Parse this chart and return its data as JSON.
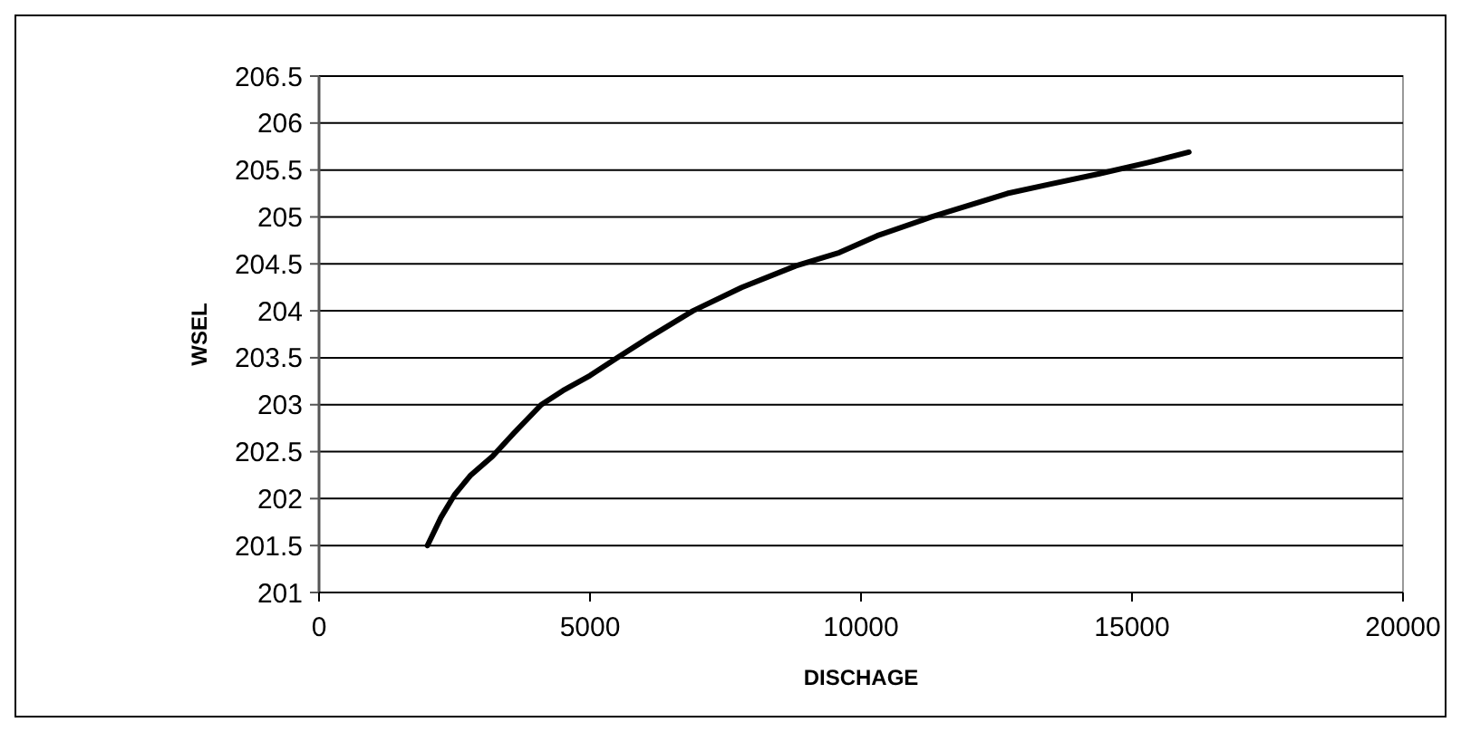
{
  "chart_data": {
    "type": "line",
    "xlabel": "DISCHAGE",
    "ylabel": "WSEL",
    "x": [
      2000,
      2250,
      2500,
      2800,
      3200,
      3600,
      4100,
      4500,
      5000,
      5500,
      6100,
      6900,
      7800,
      8800,
      9600,
      10300,
      11300,
      12700,
      13500,
      14400,
      15300,
      16050
    ],
    "series": [
      {
        "color": "#000000",
        "values": [
          201.5,
          201.8,
          202.04,
          202.25,
          202.45,
          202.7,
          203.0,
          203.15,
          203.31,
          203.5,
          203.72,
          204.0,
          204.25,
          204.48,
          204.62,
          204.8,
          205.0,
          205.25,
          205.35,
          205.46,
          205.58,
          205.69
        ]
      }
    ],
    "xlim": [
      0,
      20000
    ],
    "xticks": [
      0,
      5000,
      10000,
      15000,
      20000
    ],
    "ylim": [
      201,
      206.5
    ],
    "yticks": [
      201,
      201.5,
      202,
      202.5,
      203,
      203.5,
      204,
      204.5,
      205,
      205.5,
      206,
      206.5
    ],
    "grid": "y",
    "marker": "none",
    "line_style": "solid"
  }
}
